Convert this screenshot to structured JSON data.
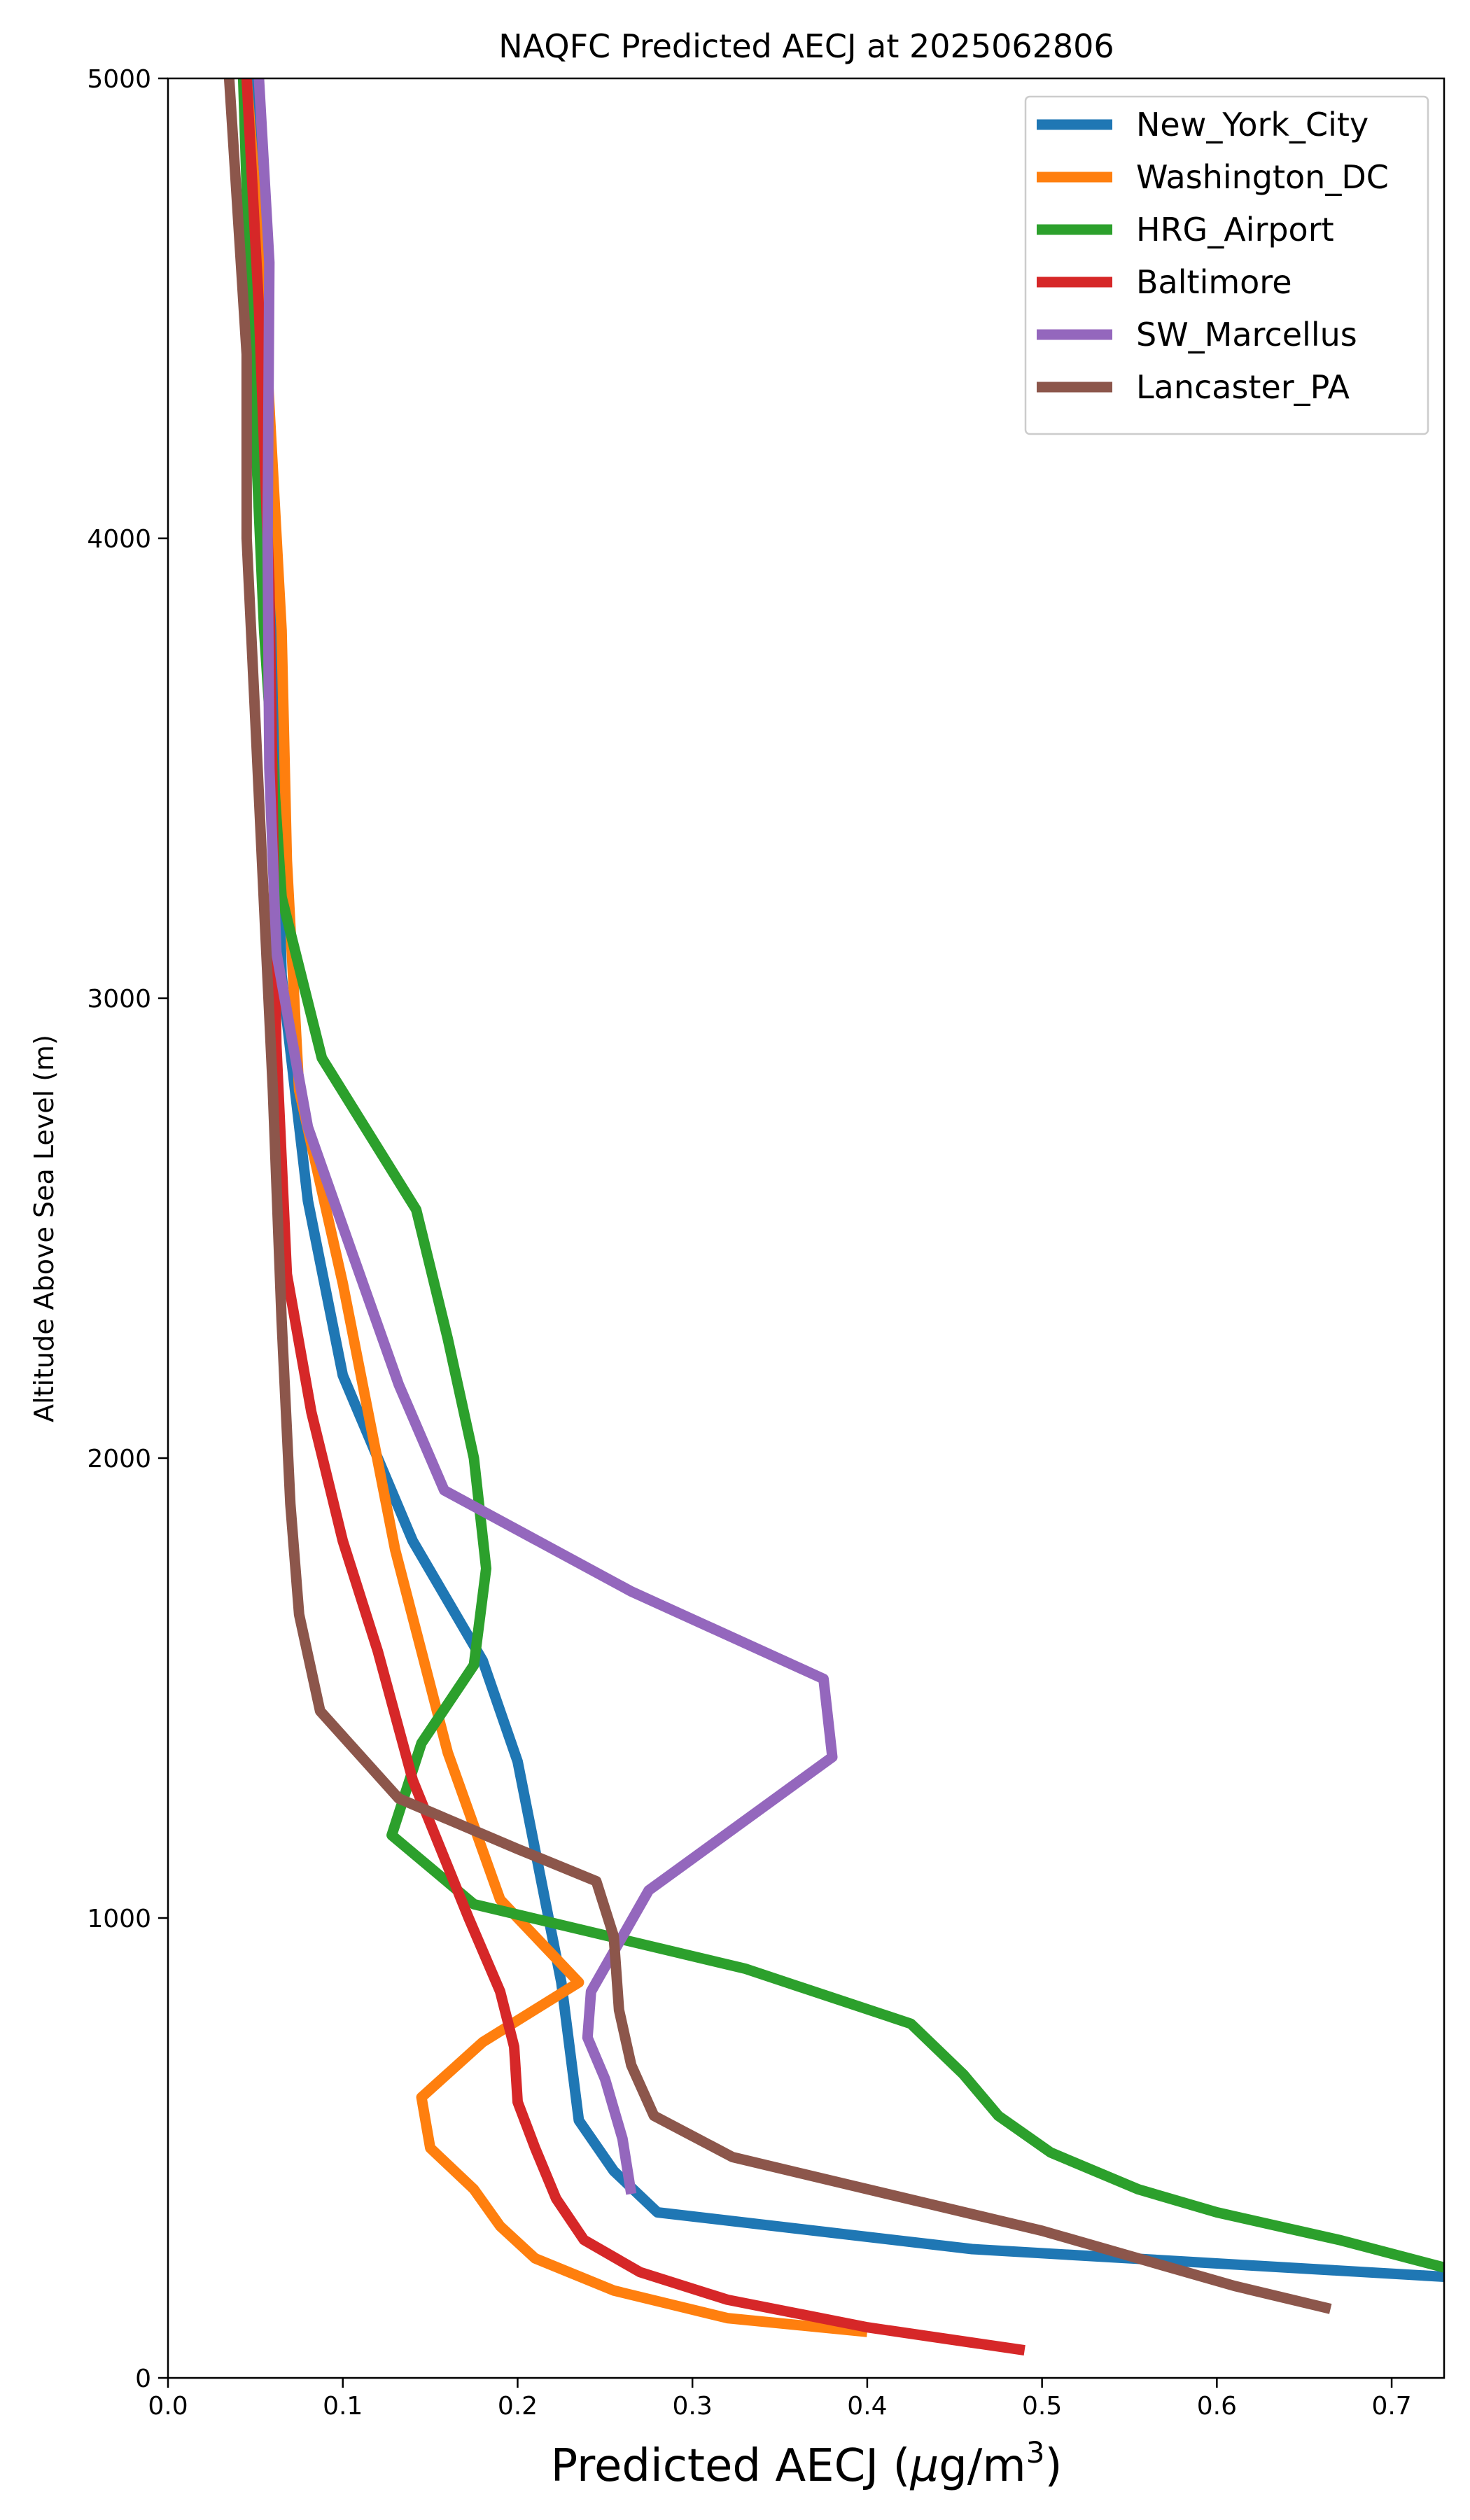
{
  "chart_data": {
    "type": "line",
    "title": "NAQFC Predicted AECJ at 2025062806",
    "xlabel_main": "Predicted AECJ (",
    "xlabel_mu": "μ",
    "xlabel_unit": "g/m",
    "xlabel_sup": "3",
    "xlabel_end": ")",
    "ylabel": "Altitude Above Sea Level (m)",
    "xlim": [
      0.0,
      0.73
    ],
    "ylim": [
      0,
      5000
    ],
    "xticks": [
      0.0,
      0.1,
      0.2,
      0.3,
      0.4,
      0.5,
      0.6,
      0.7
    ],
    "xtick_labels": [
      "0.0",
      "0.1",
      "0.2",
      "0.3",
      "0.4",
      "0.5",
      "0.6",
      "0.7"
    ],
    "yticks": [
      0,
      1000,
      2000,
      3000,
      4000,
      5000
    ],
    "ytick_labels": [
      "0",
      "1000",
      "2000",
      "3000",
      "4000",
      "5000"
    ],
    "grid": false,
    "legend_position": "top-right",
    "series": [
      {
        "name": "New_York_City",
        "color": "#1f77b4",
        "points": [
          [
            0.73,
            220
          ],
          [
            0.46,
            280
          ],
          [
            0.28,
            360
          ],
          [
            0.255,
            450
          ],
          [
            0.235,
            560
          ],
          [
            0.225,
            860
          ],
          [
            0.2,
            1340
          ],
          [
            0.18,
            1560
          ],
          [
            0.14,
            1820
          ],
          [
            0.1,
            2180
          ],
          [
            0.08,
            2560
          ],
          [
            0.065,
            3050
          ],
          [
            0.06,
            3800
          ],
          [
            0.055,
            4500
          ],
          [
            0.05,
            5000
          ]
        ]
      },
      {
        "name": "Washington_DC",
        "color": "#ff7f0e",
        "points": [
          [
            0.4,
            100
          ],
          [
            0.32,
            130
          ],
          [
            0.255,
            190
          ],
          [
            0.21,
            260
          ],
          [
            0.19,
            330
          ],
          [
            0.175,
            410
          ],
          [
            0.15,
            500
          ],
          [
            0.145,
            610
          ],
          [
            0.18,
            730
          ],
          [
            0.235,
            860
          ],
          [
            0.19,
            1040
          ],
          [
            0.16,
            1360
          ],
          [
            0.13,
            1800
          ],
          [
            0.1,
            2380
          ],
          [
            0.075,
            2800
          ],
          [
            0.068,
            3300
          ],
          [
            0.065,
            3800
          ],
          [
            0.055,
            4500
          ],
          [
            0.045,
            5000
          ]
        ]
      },
      {
        "name": "HRG_Airport",
        "color": "#2ca02c",
        "points": [
          [
            0.73,
            240
          ],
          [
            0.67,
            300
          ],
          [
            0.6,
            360
          ],
          [
            0.555,
            410
          ],
          [
            0.505,
            490
          ],
          [
            0.475,
            570
          ],
          [
            0.455,
            660
          ],
          [
            0.425,
            770
          ],
          [
            0.33,
            890
          ],
          [
            0.175,
            1030
          ],
          [
            0.128,
            1180
          ],
          [
            0.145,
            1380
          ],
          [
            0.175,
            1550
          ],
          [
            0.182,
            1760
          ],
          [
            0.175,
            2000
          ],
          [
            0.16,
            2260
          ],
          [
            0.142,
            2540
          ],
          [
            0.088,
            2870
          ],
          [
            0.065,
            3220
          ],
          [
            0.055,
            3800
          ],
          [
            0.048,
            4400
          ],
          [
            0.043,
            5000
          ]
        ]
      },
      {
        "name": "Baltimore",
        "color": "#d62728",
        "points": [
          [
            0.49,
            60
          ],
          [
            0.4,
            110
          ],
          [
            0.32,
            170
          ],
          [
            0.27,
            230
          ],
          [
            0.238,
            300
          ],
          [
            0.222,
            390
          ],
          [
            0.21,
            500
          ],
          [
            0.2,
            600
          ],
          [
            0.198,
            720
          ],
          [
            0.19,
            840
          ],
          [
            0.172,
            1000
          ],
          [
            0.14,
            1300
          ],
          [
            0.12,
            1580
          ],
          [
            0.1,
            1820
          ],
          [
            0.082,
            2100
          ],
          [
            0.068,
            2400
          ],
          [
            0.062,
            2900
          ],
          [
            0.06,
            3400
          ],
          [
            0.058,
            3900
          ],
          [
            0.052,
            4500
          ],
          [
            0.045,
            5000
          ]
        ]
      },
      {
        "name": "SW_Marcellus",
        "color": "#9467bd",
        "points": [
          [
            0.265,
            400
          ],
          [
            0.26,
            520
          ],
          [
            0.25,
            650
          ],
          [
            0.24,
            740
          ],
          [
            0.242,
            840
          ],
          [
            0.275,
            1060
          ],
          [
            0.38,
            1350
          ],
          [
            0.375,
            1520
          ],
          [
            0.265,
            1710
          ],
          [
            0.158,
            1930
          ],
          [
            0.132,
            2160
          ],
          [
            0.105,
            2450
          ],
          [
            0.08,
            2720
          ],
          [
            0.07,
            2930
          ],
          [
            0.062,
            3100
          ],
          [
            0.058,
            3500
          ],
          [
            0.057,
            4000
          ],
          [
            0.058,
            4600
          ],
          [
            0.052,
            5000
          ]
        ]
      },
      {
        "name": "Lancaster_PA",
        "color": "#8c564b",
        "points": [
          [
            0.665,
            150
          ],
          [
            0.61,
            200
          ],
          [
            0.5,
            320
          ],
          [
            0.323,
            480
          ],
          [
            0.278,
            570
          ],
          [
            0.265,
            680
          ],
          [
            0.258,
            800
          ],
          [
            0.255,
            960
          ],
          [
            0.245,
            1080
          ],
          [
            0.2,
            1150
          ],
          [
            0.132,
            1260
          ],
          [
            0.087,
            1450
          ],
          [
            0.075,
            1660
          ],
          [
            0.07,
            1900
          ],
          [
            0.065,
            2300
          ],
          [
            0.06,
            2800
          ],
          [
            0.055,
            3200
          ],
          [
            0.05,
            3600
          ],
          [
            0.045,
            4000
          ],
          [
            0.045,
            4400
          ],
          [
            0.04,
            4700
          ],
          [
            0.035,
            5000
          ]
        ]
      }
    ]
  }
}
